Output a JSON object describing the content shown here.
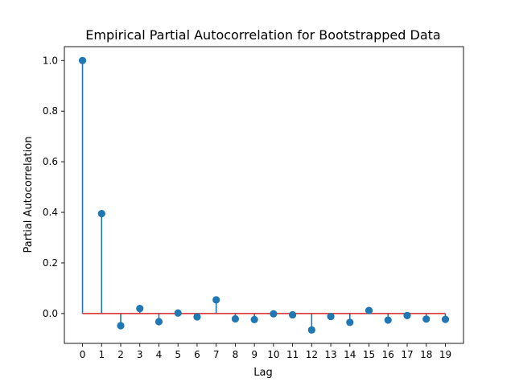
{
  "chart_data": {
    "type": "stem",
    "title": "Empirical Partial Autocorrelation for Bootstrapped Data",
    "xlabel": "Lag",
    "ylabel": "Partial Autocorrelation",
    "x": [
      0,
      1,
      2,
      3,
      4,
      5,
      6,
      7,
      8,
      9,
      10,
      11,
      12,
      13,
      14,
      15,
      16,
      17,
      18,
      19
    ],
    "values": [
      1.0,
      0.395,
      -0.048,
      0.02,
      -0.032,
      0.002,
      -0.013,
      0.054,
      -0.021,
      -0.024,
      -0.001,
      -0.005,
      -0.065,
      -0.012,
      -0.035,
      0.012,
      -0.026,
      -0.008,
      -0.022,
      -0.023
    ],
    "xlim": [
      -0.95,
      19.95
    ],
    "ylim": [
      -0.118,
      1.055
    ],
    "yticks": [
      0.0,
      0.2,
      0.4,
      0.6,
      0.8,
      1.0
    ],
    "ytick_labels": [
      "0.0",
      "0.2",
      "0.4",
      "0.6",
      "0.8",
      "1.0"
    ],
    "xticks": [
      0,
      1,
      2,
      3,
      4,
      5,
      6,
      7,
      8,
      9,
      10,
      11,
      12,
      13,
      14,
      15,
      16,
      17,
      18,
      19
    ],
    "xtick_labels": [
      "0",
      "1",
      "2",
      "3",
      "4",
      "5",
      "6",
      "7",
      "8",
      "9",
      "10",
      "11",
      "12",
      "13",
      "14",
      "15",
      "16",
      "17",
      "18",
      "19"
    ],
    "baseline": 0,
    "grid": false,
    "colors": {
      "stem": "#1f77b4",
      "marker": "#1f77b4",
      "baseline": "#d62728"
    }
  }
}
